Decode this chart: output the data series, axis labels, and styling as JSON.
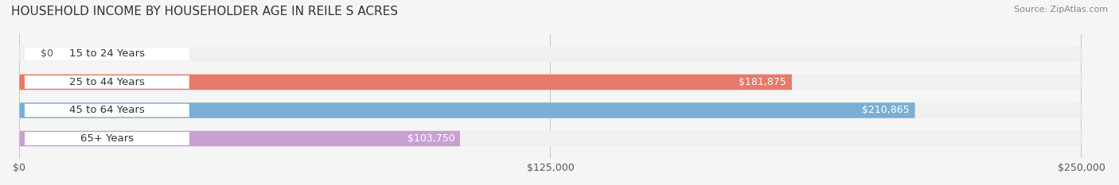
{
  "title": "HOUSEHOLD INCOME BY HOUSEHOLDER AGE IN REILE S ACRES",
  "source": "Source: ZipAtlas.com",
  "categories": [
    "15 to 24 Years",
    "25 to 44 Years",
    "45 to 64 Years",
    "65+ Years"
  ],
  "values": [
    0,
    181875,
    210865,
    103750
  ],
  "bar_colors": [
    "#f0c896",
    "#e8796a",
    "#7aafd4",
    "#c9a0d4"
  ],
  "bar_bg_color": "#f0f0f0",
  "label_bg_color": "#ffffff",
  "xlim": [
    0,
    250000
  ],
  "xticks": [
    0,
    125000,
    250000
  ],
  "xtick_labels": [
    "$0",
    "$125,000",
    "$250,000"
  ],
  "value_labels": [
    "$0",
    "$181,875",
    "$210,865",
    "$103,750"
  ],
  "fig_bg_color": "#f5f5f5",
  "title_fontsize": 11,
  "bar_height": 0.55,
  "figsize": [
    14.06,
    2.33
  ]
}
